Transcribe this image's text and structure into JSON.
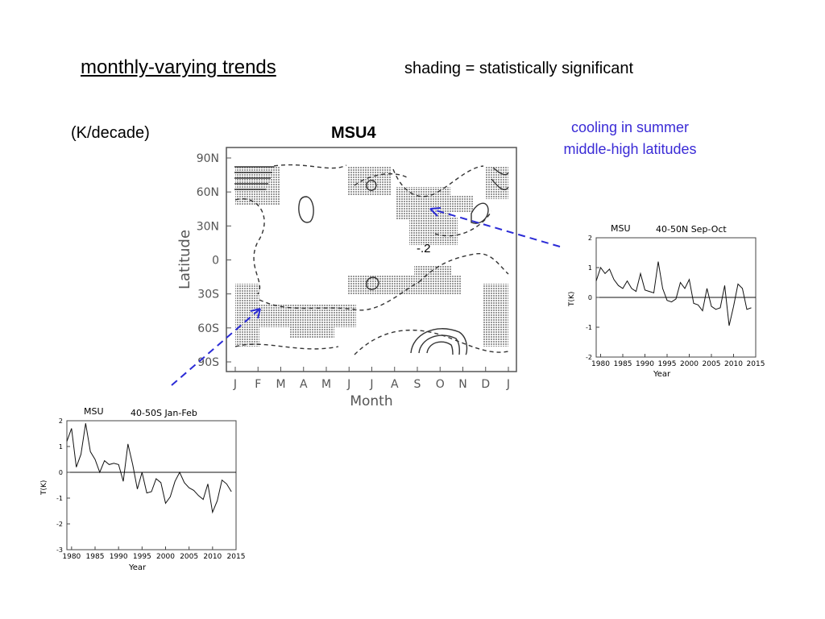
{
  "header": {
    "title": "monthly-varying trends",
    "shading_note": "shading = statistically significant",
    "units": "(K/decade)",
    "panel_title": "MSU4",
    "annotation": "cooling in summer middle-high latitudes",
    "contour_label": "-.2"
  },
  "colors": {
    "annotation": "#3a2bd6",
    "arrow": "#2b2bd6"
  },
  "chart_data": [
    {
      "type": "heatmap",
      "title": "MSU4",
      "xlabel": "Month",
      "ylabel": "Latitude",
      "x_ticks": [
        "J",
        "F",
        "M",
        "A",
        "M",
        "J",
        "J",
        "A",
        "S",
        "O",
        "N",
        "D",
        "J"
      ],
      "y_ticks": [
        "90N",
        "60N",
        "30N",
        "0",
        "30S",
        "60S",
        "90S"
      ],
      "contour_label": "-.2",
      "contours": "solid = positive trend, dashed = negative trend",
      "shading": "statistically significant"
    },
    {
      "type": "line",
      "title": "MSU",
      "subtitle": "40-50N Sep-Oct",
      "xlabel": "Year",
      "ylabel": "T(K)",
      "xlim": [
        1979,
        2015
      ],
      "ylim": [
        -2,
        2
      ],
      "x_ticks": [
        1980,
        1985,
        1990,
        1995,
        2000,
        2005,
        2010,
        2015
      ],
      "y_ticks": [
        -2,
        -1,
        0,
        1,
        2
      ],
      "series": [
        {
          "x": [
            1979,
            1980,
            1981,
            1982,
            1983,
            1984,
            1985,
            1986,
            1987,
            1988,
            1989,
            1990,
            1991,
            1992,
            1993,
            1994,
            1995,
            1996,
            1997,
            1998,
            1999,
            2000,
            2001,
            2002,
            2003,
            2004,
            2005,
            2006,
            2007,
            2008,
            2009,
            2010,
            2011,
            2012,
            2013,
            2014
          ],
          "values": [
            0.55,
            1.0,
            0.8,
            0.95,
            0.6,
            0.4,
            0.3,
            0.55,
            0.3,
            0.2,
            0.8,
            0.25,
            0.2,
            0.15,
            1.2,
            0.3,
            -0.1,
            -0.15,
            -0.05,
            0.5,
            0.3,
            0.6,
            -0.2,
            -0.25,
            -0.45,
            0.3,
            -0.3,
            -0.4,
            -0.35,
            0.4,
            -0.95,
            -0.3,
            0.45,
            0.3,
            -0.4,
            -0.35
          ]
        }
      ]
    },
    {
      "type": "line",
      "title": "MSU",
      "subtitle": "40-50S Jan-Feb",
      "xlabel": "Year",
      "ylabel": "T(K)",
      "xlim": [
        1979,
        2015
      ],
      "ylim": [
        -3,
        2
      ],
      "x_ticks": [
        1980,
        1985,
        1990,
        1995,
        2000,
        2005,
        2010,
        2015
      ],
      "y_ticks": [
        -3,
        -2,
        -1,
        0,
        1,
        2
      ],
      "series": [
        {
          "x": [
            1979,
            1980,
            1981,
            1982,
            1983,
            1984,
            1985,
            1986,
            1987,
            1988,
            1989,
            1990,
            1991,
            1992,
            1993,
            1994,
            1995,
            1996,
            1997,
            1998,
            1999,
            2000,
            2001,
            2002,
            2003,
            2004,
            2005,
            2006,
            2007,
            2008,
            2009,
            2010,
            2011,
            2012,
            2013,
            2014
          ],
          "values": [
            1.2,
            1.7,
            0.2,
            0.7,
            1.9,
            0.8,
            0.5,
            0.0,
            0.45,
            0.3,
            0.35,
            0.3,
            -0.35,
            1.1,
            0.3,
            -0.65,
            0.0,
            -0.8,
            -0.75,
            -0.25,
            -0.4,
            -1.2,
            -0.95,
            -0.35,
            0.0,
            -0.4,
            -0.6,
            -0.7,
            -0.9,
            -1.05,
            -0.45,
            -1.55,
            -1.1,
            -0.3,
            -0.45,
            -0.75
          ]
        }
      ]
    }
  ]
}
